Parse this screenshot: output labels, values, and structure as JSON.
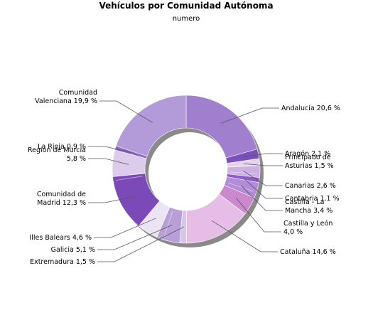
{
  "chart_data": {
    "type": "pie",
    "title": "Vehículos por Comunidad Autónoma",
    "subtitle": "numero",
    "series": [
      {
        "name": "Andalucía",
        "label": "Andalucía 20,6 %",
        "value": 20.6,
        "color": "#a07fce"
      },
      {
        "name": "Aragón",
        "label": "Aragón 2,1 %",
        "value": 2.1,
        "color": "#7b4fbf"
      },
      {
        "name": "Principado de Asturias",
        "label": "Principado de\nAsturias 1,5 %",
        "value": 1.5,
        "color": "#e3d3ee"
      },
      {
        "name": "Canarias",
        "label": "Canarias 2,6 %",
        "value": 2.6,
        "color": "#cbb0e2"
      },
      {
        "name": "Cantabria",
        "label": "Cantabria 1,1 %",
        "value": 1.1,
        "color": "#8e5cc8"
      },
      {
        "name": "Castilla - La Mancha",
        "label": "Castilla - La\nMancha 3,4 %",
        "value": 3.4,
        "color": "#b38bd8"
      },
      {
        "name": "Castilla y León",
        "label": "Castilla y León\n4,0 %",
        "value": 4.0,
        "color": "#cc88cc"
      },
      {
        "name": "Cataluña",
        "label": "Cataluña 14,6 %",
        "value": 14.6,
        "color": "#e6bde6"
      },
      {
        "name": "Extremadura",
        "label": "Extremadura 1,5 %",
        "value": 1.5,
        "color": "#d8c6ea"
      },
      {
        "name": "Galicia",
        "label": "Galicia 5,1 %",
        "value": 5.1,
        "color": "#b89fd8"
      },
      {
        "name": "Illes Balears",
        "label": "Illes Balears 4,6 %",
        "value": 4.6,
        "color": "#ece3f4"
      },
      {
        "name": "Comunidad de Madrid",
        "label": "Comunidad de\nMadrid 12,3 %",
        "value": 12.3,
        "color": "#7c4ab8"
      },
      {
        "name": "Región de Murcia",
        "label": "Región de Murcia\n5,8 %",
        "value": 5.8,
        "color": "#dccbea"
      },
      {
        "name": "La Rioja",
        "label": "La Rioja 0,9 %",
        "value": 0.9,
        "color": "#8a67c0"
      },
      {
        "name": "Comunidad Valenciana",
        "label": "Comunidad\nValenciana 19,9 %",
        "value": 19.9,
        "color": "#b39ad8"
      }
    ]
  }
}
